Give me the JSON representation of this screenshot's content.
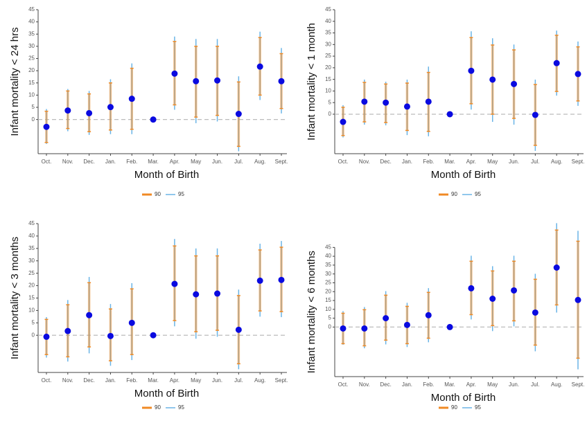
{
  "chart_data": [
    {
      "type": "errorbar",
      "ylabel": "Infant mortality < 24 hrs",
      "xlabel": "Month of Birth",
      "categories": [
        "Oct.",
        "Nov.",
        "Dec.",
        "Jan.",
        "Feb.",
        "Mar.",
        "Apr.",
        "May",
        "Jun.",
        "Jul.",
        "Aug.",
        "Sept."
      ],
      "ylim": [
        -14,
        45
      ],
      "yticks": [
        0,
        5,
        10,
        15,
        20,
        25,
        30,
        35,
        40,
        45
      ],
      "points": {
        "color": "#0a0ae0",
        "values": [
          -3,
          3.7,
          2.6,
          5.1,
          8.5,
          0,
          18.8,
          15.7,
          16,
          2.3,
          21.7,
          15.7
        ]
      },
      "series": [
        {
          "name": "90",
          "color": "#f08a24",
          "low": [
            -9.4,
            -3.7,
            -5,
            -4.3,
            -4,
            0,
            6,
            1,
            1.7,
            -11,
            10,
            4.5
          ],
          "high": [
            3.4,
            11.7,
            10.5,
            15,
            21,
            0,
            32,
            30,
            30,
            15.4,
            33.6,
            27
          ]
        },
        {
          "name": "95",
          "color": "#6ab4e6",
          "low": [
            -10,
            -4.8,
            -6.3,
            -6,
            -6,
            0,
            4,
            -1.5,
            -0.8,
            -13,
            8,
            2.5
          ],
          "high": [
            4.3,
            12.5,
            11.7,
            16.5,
            23,
            0,
            34,
            33,
            33,
            17.7,
            36,
            29.3
          ]
        }
      ]
    },
    {
      "type": "errorbar",
      "ylabel": "Infant mortality < 1 month",
      "xlabel": "Month of Birth",
      "categories": [
        "Oct.",
        "Nov.",
        "Dec.",
        "Jan.",
        "Feb.",
        "Mar.",
        "Apr.",
        "May",
        "Jun.",
        "Jul.",
        "Aug.",
        "Sept."
      ],
      "ylim": [
        -17,
        45
      ],
      "yticks": [
        0,
        5,
        10,
        15,
        20,
        25,
        30,
        35,
        40,
        45
      ],
      "points": {
        "color": "#0a0ae0",
        "values": [
          -3.3,
          5.4,
          5,
          3.3,
          5.4,
          0,
          18.7,
          14.9,
          13,
          -0.3,
          22,
          17.3
        ]
      },
      "series": [
        {
          "name": "90",
          "color": "#f08a24",
          "low": [
            -9.2,
            -3.3,
            -3.6,
            -7,
            -7.4,
            0,
            4.5,
            0,
            -1.8,
            -13.4,
            9.8,
            5.7
          ],
          "high": [
            3,
            13.7,
            13,
            13.4,
            18,
            0,
            33,
            29.8,
            27.7,
            12.8,
            34,
            29
          ]
        },
        {
          "name": "95",
          "color": "#6ab4e6",
          "low": [
            -10,
            -4.5,
            -4.8,
            -9,
            -9.5,
            0,
            2,
            -3.3,
            -4.5,
            -15.8,
            8,
            3.6
          ],
          "high": [
            3.9,
            14.9,
            14,
            14.9,
            20.5,
            0,
            35.7,
            32.7,
            30,
            14.9,
            36,
            31.3
          ]
        }
      ]
    },
    {
      "type": "errorbar",
      "ylabel": "Infant mortality < 3 months",
      "xlabel": "Month of Birth",
      "categories": [
        "Oct.",
        "Nov.",
        "Dec.",
        "Jan.",
        "Feb.",
        "Mar.",
        "Apr.",
        "May",
        "Jun.",
        "Jul.",
        "Aug.",
        "Sept."
      ],
      "ylim": [
        -15,
        45
      ],
      "yticks": [
        0,
        5,
        10,
        15,
        20,
        25,
        30,
        35,
        40,
        45
      ],
      "points": {
        "color": "#0a0ae0",
        "values": [
          -0.6,
          1.7,
          8.1,
          -0.3,
          5,
          0,
          20.7,
          16.5,
          16.8,
          2.2,
          22,
          22.3
        ]
      },
      "series": [
        {
          "name": "90",
          "color": "#f08a24",
          "low": [
            -7.8,
            -8.7,
            -4.7,
            -10.3,
            -7.8,
            0,
            5.9,
            1.4,
            2,
            -11.5,
            9.8,
            9.5
          ],
          "high": [
            6.4,
            12.3,
            21.2,
            10.6,
            18.7,
            0,
            36,
            32,
            32,
            16,
            34.4,
            35.5
          ]
        },
        {
          "name": "95",
          "color": "#6ab4e6",
          "low": [
            -9,
            -10.6,
            -7.3,
            -12.3,
            -10,
            0,
            3.6,
            -1.4,
            -0.6,
            -13.7,
            7.5,
            7.3
          ],
          "high": [
            7.3,
            14.2,
            23.5,
            12.6,
            21,
            0,
            38.8,
            35,
            35,
            18.4,
            36.9,
            38
          ]
        }
      ]
    },
    {
      "type": "errorbar",
      "ylabel": "Infant mortality < 6 months",
      "xlabel": "Month of Birth",
      "categories": [
        "Oct.",
        "Nov.",
        "Dec.",
        "Jan.",
        "Feb.",
        "Mar.",
        "Apr.",
        "May",
        "Jun.",
        "Jul.",
        "Aug.",
        "Sept."
      ],
      "ylim": [
        -28,
        60
      ],
      "yticks": [
        0,
        5,
        10,
        15,
        20,
        25,
        30,
        35,
        40,
        45
      ],
      "points": {
        "color": "#0a0ae0",
        "values": [
          -0.8,
          -0.8,
          5,
          1.2,
          6.7,
          0,
          21.9,
          16,
          20.7,
          8.2,
          33.6,
          15.3
        ]
      },
      "series": [
        {
          "name": "90",
          "color": "#f08a24",
          "low": [
            -9.4,
            -10.6,
            -7.4,
            -9.4,
            -6.3,
            0,
            7,
            0.8,
            3.5,
            -10.2,
            12.5,
            -17.6
          ],
          "high": [
            7.8,
            9.8,
            18,
            11.7,
            19.6,
            0,
            37.2,
            31.7,
            37.2,
            27,
            54.8,
            48.5
          ]
        },
        {
          "name": "95",
          "color": "#6ab4e6",
          "low": [
            -10,
            -12,
            -9.8,
            -11.3,
            -8.6,
            0,
            4.3,
            -2.3,
            0.4,
            -13.7,
            8.2,
            -23.9
          ],
          "high": [
            9,
            11.3,
            20.3,
            13.7,
            22,
            0,
            40.3,
            34.4,
            40.3,
            30.1,
            58.7,
            54.4
          ]
        }
      ]
    }
  ]
}
